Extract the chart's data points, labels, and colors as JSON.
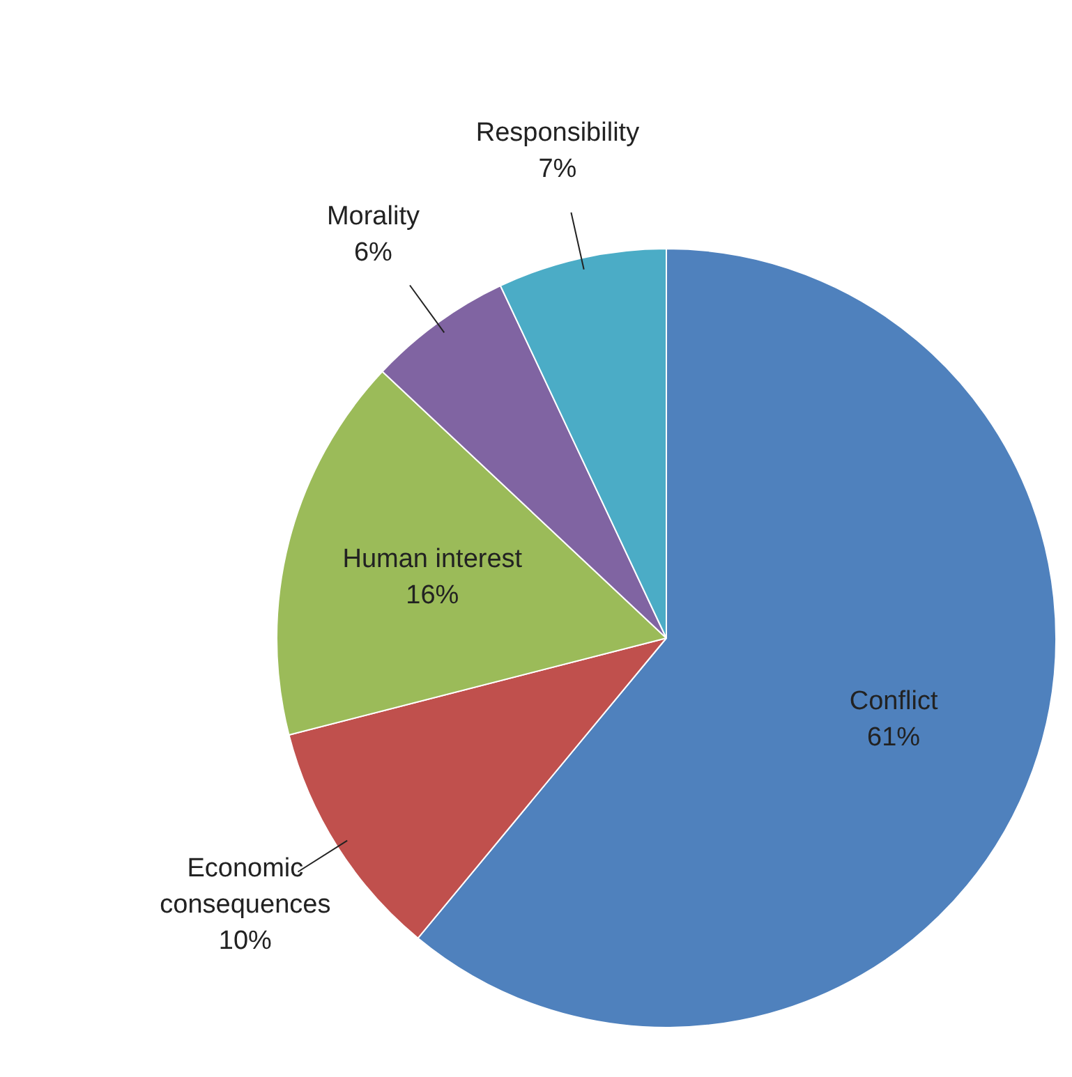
{
  "chart_data": {
    "type": "pie",
    "categories": [
      "Conflict",
      "Economic consequences",
      "Human interest",
      "Morality",
      "Responsibility"
    ],
    "values": [
      61,
      10,
      16,
      6,
      7
    ],
    "value_labels": [
      "61%",
      "10%",
      "16%",
      "6%",
      "7%"
    ],
    "colors": [
      "#4f81bd",
      "#c0504d",
      "#9bbb59",
      "#8064a2",
      "#4bacc6"
    ],
    "legend": false
  }
}
